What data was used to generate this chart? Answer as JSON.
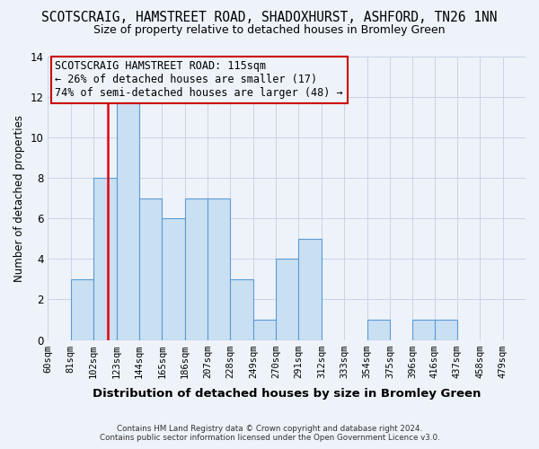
{
  "title": "SCOTSCRAIG, HAMSTREET ROAD, SHADOXHURST, ASHFORD, TN26 1NN",
  "subtitle": "Size of property relative to detached houses in Bromley Green",
  "xlabel": "Distribution of detached houses by size in Bromley Green",
  "ylabel": "Number of detached properties",
  "footer_line1": "Contains HM Land Registry data © Crown copyright and database right 2024.",
  "footer_line2": "Contains public sector information licensed under the Open Government Licence v3.0.",
  "bin_labels": [
    "60sqm",
    "81sqm",
    "102sqm",
    "123sqm",
    "144sqm",
    "165sqm",
    "186sqm",
    "207sqm",
    "228sqm",
    "249sqm",
    "270sqm",
    "291sqm",
    "312sqm",
    "333sqm",
    "354sqm",
    "375sqm",
    "396sqm",
    "416sqm",
    "437sqm",
    "458sqm",
    "479sqm"
  ],
  "bin_edges": [
    60,
    81,
    102,
    123,
    144,
    165,
    186,
    207,
    228,
    249,
    270,
    291,
    312,
    333,
    354,
    375,
    396,
    416,
    437,
    458,
    479
  ],
  "counts": [
    0,
    3,
    8,
    12,
    7,
    6,
    7,
    7,
    3,
    1,
    4,
    5,
    0,
    0,
    1,
    0,
    1,
    1,
    0,
    0,
    0
  ],
  "bar_color": "#c9dff2",
  "bar_edge_color": "#5b9bd5",
  "property_size": 115,
  "red_line_color": "#e8000d",
  "annotation_text": "SCOTSCRAIG HAMSTREET ROAD: 115sqm\n← 26% of detached houses are smaller (17)\n74% of semi-detached houses are larger (48) →",
  "annotation_box_edge": "#cc0000",
  "ylim": [
    0,
    14
  ],
  "yticks": [
    0,
    2,
    4,
    6,
    8,
    10,
    12,
    14
  ],
  "bg_color": "#eef3fa",
  "grid_color": "#c8d4e8",
  "title_fontsize": 10.5,
  "subtitle_fontsize": 9.0,
  "annot_fontsize": 8.5
}
